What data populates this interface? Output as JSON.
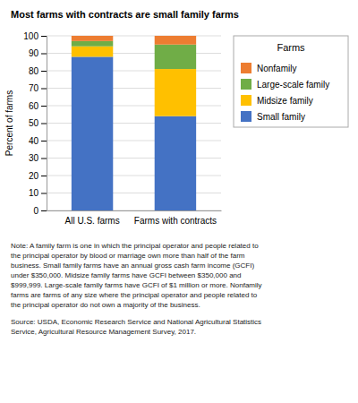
{
  "chart_data": {
    "type": "bar",
    "stacked": true,
    "title": "Most farms with contracts are small family farms",
    "ylabel": "Percent of farms",
    "categories": [
      "All U.S. farms",
      "Farms with contracts"
    ],
    "series": [
      {
        "name": "Small family",
        "color": "#4472C4",
        "values": [
          88,
          54
        ]
      },
      {
        "name": "Midsize family",
        "color": "#FFC000",
        "values": [
          6,
          27
        ]
      },
      {
        "name": "Large-scale family",
        "color": "#70AD47",
        "values": [
          3,
          14
        ]
      },
      {
        "name": "Nonfamily",
        "color": "#ED7D31",
        "values": [
          3,
          5
        ]
      }
    ],
    "ylim": [
      0,
      100
    ],
    "yticks": [
      0,
      10,
      20,
      30,
      40,
      50,
      60,
      70,
      80,
      90,
      100
    ],
    "grid": true,
    "legend": "right",
    "legend_title": "Farms",
    "annotations": [
      "Note: A family farm is one in which the principal operator and people related to\nthe principal operator by blood or marriage own more than half of the farm\nbusiness. Small family farms have an annual gross cash farm income (GCFI)\nunder $350,000. Midsize family farms have GCFI between $350,000 and\n$999,999. Large-scale family farms have GCFI of $1 million or more. Nonfamily\nfarms are farms of any size where the principal operator and people related to\nthe principal operator do not own a majority of the business.",
      "Source: USDA, Economic Research Service and National Agricultural Statistics\nService, Agricultural Resource Management Survey, 2017."
    ]
  }
}
